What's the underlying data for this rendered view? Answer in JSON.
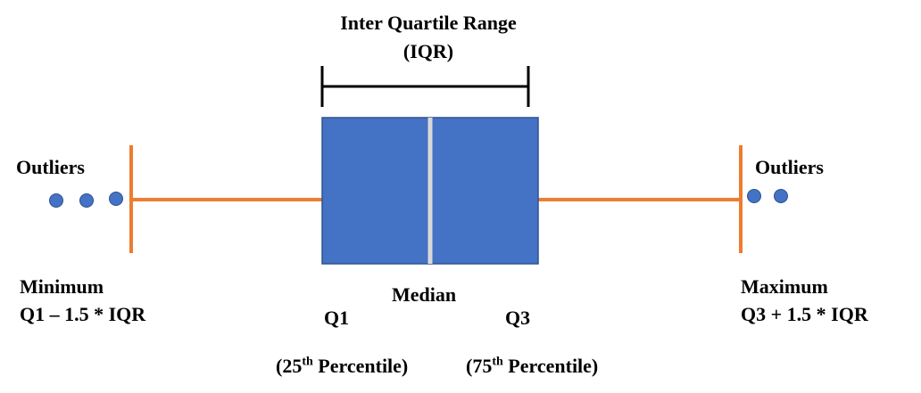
{
  "diagram": {
    "iqr_title": "Inter Quartile Range",
    "iqr_abbr": "(IQR)",
    "outliers_left": "Outliers",
    "outliers_right": "Outliers",
    "minimum_label": "Minimum",
    "minimum_formula": "Q1 – 1.5 * IQR",
    "maximum_label": "Maximum",
    "maximum_formula": "Q3 + 1.5 * IQR",
    "median_label": "Median",
    "q1_label": "Q1",
    "q3_label": "Q3",
    "p25_open": "(25",
    "p75_open": "(75",
    "th_suffix": "th",
    "percentile_close": " Percentile)"
  },
  "colors": {
    "box_fill": "#4472c4",
    "box_stroke": "#2f528f",
    "whisker": "#ed7d31",
    "median_line": "#d9d9d9",
    "outlier_dot": "#4472c4",
    "bracket": "#000000"
  },
  "counts": {
    "left_outliers": 3,
    "right_outliers": 2
  }
}
